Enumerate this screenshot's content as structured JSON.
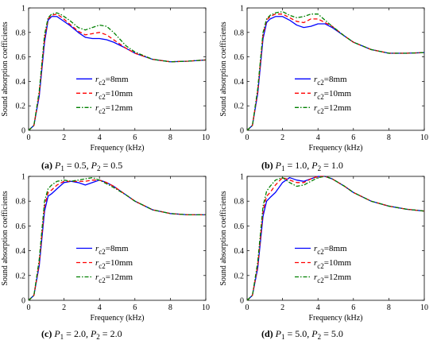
{
  "chart_data": [
    {
      "type": "line",
      "caption": {
        "letter": "(a)",
        "p1_sym": "P",
        "p1_sub": "1",
        "p1_val": " = 0.5, ",
        "p2_sym": "P",
        "p2_sub": "2",
        "p2_val": " = 0.5"
      },
      "xlabel": "Frequency (kHz)",
      "ylabel": "Sound absorption coefficients",
      "xlim": [
        0,
        10
      ],
      "ylim": [
        0,
        1
      ],
      "xticks": [
        "0",
        "2",
        "4",
        "6",
        "8",
        "10"
      ],
      "yticks": [
        "0",
        "0.2",
        "0.4",
        "0.6",
        "0.8",
        "1"
      ],
      "legend_position": "center-left",
      "series": [
        {
          "name": "r_c2=8mm",
          "sym": "r",
          "sub": "c2",
          "suffix": "=8mm",
          "color": "#0000ff",
          "dash": "solid",
          "x": [
            0,
            0.3,
            0.6,
            0.9,
            1.1,
            1.3,
            1.6,
            1.9,
            2.3,
            2.8,
            3.2,
            3.6,
            4.0,
            4.4,
            4.8,
            5.5,
            6.0,
            7.0,
            8.0,
            9.0,
            10.0
          ],
          "y": [
            0,
            0.04,
            0.28,
            0.72,
            0.9,
            0.93,
            0.93,
            0.9,
            0.86,
            0.8,
            0.76,
            0.75,
            0.75,
            0.74,
            0.72,
            0.67,
            0.63,
            0.58,
            0.56,
            0.565,
            0.575
          ]
        },
        {
          "name": "r_c2=10mm",
          "sym": "r",
          "sub": "c2",
          "suffix": "=10mm",
          "color": "#ff0000",
          "dash": "dashed",
          "x": [
            0,
            0.3,
            0.6,
            0.9,
            1.1,
            1.3,
            1.6,
            1.9,
            2.3,
            2.8,
            3.2,
            3.6,
            4.0,
            4.4,
            4.8,
            5.5,
            6.0,
            7.0,
            8.0,
            9.0,
            10.0
          ],
          "y": [
            0,
            0.04,
            0.3,
            0.75,
            0.91,
            0.94,
            0.95,
            0.92,
            0.87,
            0.81,
            0.78,
            0.79,
            0.8,
            0.78,
            0.74,
            0.67,
            0.63,
            0.58,
            0.56,
            0.565,
            0.575
          ]
        },
        {
          "name": "r_c2=12mm",
          "sym": "r",
          "sub": "c2",
          "suffix": "=12mm",
          "color": "#008000",
          "dash": "dashdot",
          "x": [
            0,
            0.3,
            0.6,
            0.9,
            1.1,
            1.3,
            1.6,
            1.9,
            2.3,
            2.8,
            3.2,
            3.6,
            4.0,
            4.4,
            4.8,
            5.5,
            6.0,
            7.0,
            8.0,
            9.0,
            10.0
          ],
          "y": [
            0,
            0.04,
            0.32,
            0.78,
            0.92,
            0.95,
            0.96,
            0.94,
            0.9,
            0.84,
            0.82,
            0.84,
            0.86,
            0.85,
            0.8,
            0.69,
            0.64,
            0.58,
            0.56,
            0.565,
            0.575
          ]
        }
      ]
    },
    {
      "type": "line",
      "caption": {
        "letter": "(b)",
        "p1_sym": "P",
        "p1_sub": "1",
        "p1_val": " = 1.0, ",
        "p2_sym": "P",
        "p2_sub": "2",
        "p2_val": " = 1.0"
      },
      "xlabel": "Frequency (kHz)",
      "ylabel": "Sound absorption coefficients",
      "xlim": [
        0,
        10
      ],
      "ylim": [
        0,
        1
      ],
      "xticks": [
        "0",
        "2",
        "4",
        "6",
        "8",
        "10"
      ],
      "yticks": [
        "0",
        "0.2",
        "0.4",
        "0.6",
        "0.8",
        "1"
      ],
      "legend_position": "center-left",
      "series": [
        {
          "name": "r_c2=8mm",
          "sym": "r",
          "sub": "c2",
          "suffix": "=8mm",
          "color": "#0000ff",
          "dash": "solid",
          "x": [
            0,
            0.3,
            0.6,
            0.9,
            1.1,
            1.3,
            1.6,
            2.0,
            2.4,
            2.8,
            3.2,
            3.6,
            4.0,
            4.4,
            4.8,
            5.5,
            6.0,
            7.0,
            8.0,
            9.0,
            10.0
          ],
          "y": [
            0,
            0.04,
            0.3,
            0.75,
            0.88,
            0.91,
            0.93,
            0.93,
            0.9,
            0.86,
            0.84,
            0.85,
            0.87,
            0.87,
            0.84,
            0.77,
            0.72,
            0.66,
            0.63,
            0.63,
            0.635
          ]
        },
        {
          "name": "r_c2=10mm",
          "sym": "r",
          "sub": "c2",
          "suffix": "=10mm",
          "color": "#ff0000",
          "dash": "dashed",
          "x": [
            0,
            0.3,
            0.6,
            0.9,
            1.1,
            1.3,
            1.6,
            2.0,
            2.4,
            2.8,
            3.2,
            3.6,
            4.0,
            4.4,
            4.8,
            5.5,
            6.0,
            7.0,
            8.0,
            9.0,
            10.0
          ],
          "y": [
            0,
            0.04,
            0.32,
            0.78,
            0.9,
            0.93,
            0.95,
            0.95,
            0.92,
            0.89,
            0.88,
            0.91,
            0.91,
            0.88,
            0.85,
            0.77,
            0.72,
            0.66,
            0.63,
            0.63,
            0.635
          ]
        },
        {
          "name": "r_c2=12mm",
          "sym": "r",
          "sub": "c2",
          "suffix": "=12mm",
          "color": "#008000",
          "dash": "dashdot",
          "x": [
            0,
            0.3,
            0.6,
            0.9,
            1.1,
            1.3,
            1.6,
            2.0,
            2.4,
            2.8,
            3.2,
            3.6,
            4.0,
            4.4,
            4.8,
            5.5,
            6.0,
            7.0,
            8.0,
            9.0,
            10.0
          ],
          "y": [
            0,
            0.04,
            0.34,
            0.8,
            0.91,
            0.94,
            0.96,
            0.97,
            0.94,
            0.92,
            0.93,
            0.95,
            0.95,
            0.9,
            0.85,
            0.77,
            0.72,
            0.66,
            0.63,
            0.63,
            0.635
          ]
        }
      ]
    },
    {
      "type": "line",
      "caption": {
        "letter": "(c)",
        "p1_sym": "P",
        "p1_sub": "1",
        "p1_val": " = 2.0, ",
        "p2_sym": "P",
        "p2_sub": "2",
        "p2_val": " = 2.0"
      },
      "xlabel": "Frequency (kHz)",
      "ylabel": "Sound absorption coefficients",
      "xlim": [
        0,
        10
      ],
      "ylim": [
        0,
        1
      ],
      "xticks": [
        "0",
        "2",
        "4",
        "6",
        "8",
        "10"
      ],
      "yticks": [
        "0",
        "0.2",
        "0.4",
        "0.6",
        "0.8",
        "1"
      ],
      "legend_position": "center-left",
      "series": [
        {
          "name": "r_c2=8mm",
          "sym": "r",
          "sub": "c2",
          "suffix": "=8mm",
          "color": "#0000ff",
          "dash": "solid",
          "x": [
            0,
            0.3,
            0.6,
            0.9,
            1.1,
            1.3,
            1.6,
            2.0,
            2.4,
            2.8,
            3.2,
            3.6,
            4.0,
            4.4,
            4.8,
            5.5,
            6.0,
            7.0,
            8.0,
            9.0,
            10.0
          ],
          "y": [
            0,
            0.04,
            0.28,
            0.72,
            0.84,
            0.86,
            0.9,
            0.95,
            0.96,
            0.95,
            0.93,
            0.95,
            0.97,
            0.95,
            0.92,
            0.85,
            0.8,
            0.73,
            0.7,
            0.69,
            0.69
          ]
        },
        {
          "name": "r_c2=10mm",
          "sym": "r",
          "sub": "c2",
          "suffix": "=10mm",
          "color": "#ff0000",
          "dash": "dashed",
          "x": [
            0,
            0.3,
            0.6,
            0.9,
            1.1,
            1.3,
            1.6,
            2.0,
            2.4,
            2.8,
            3.2,
            3.6,
            4.0,
            4.4,
            4.8,
            5.5,
            6.0,
            7.0,
            8.0,
            9.0,
            10.0
          ],
          "y": [
            0,
            0.04,
            0.3,
            0.76,
            0.87,
            0.89,
            0.93,
            0.96,
            0.96,
            0.96,
            0.96,
            0.97,
            0.97,
            0.95,
            0.92,
            0.85,
            0.8,
            0.73,
            0.7,
            0.69,
            0.69
          ]
        },
        {
          "name": "r_c2=12mm",
          "sym": "r",
          "sub": "c2",
          "suffix": "=12mm",
          "color": "#008000",
          "dash": "dashdot",
          "x": [
            0,
            0.3,
            0.6,
            0.9,
            1.1,
            1.3,
            1.6,
            2.0,
            2.4,
            2.8,
            3.2,
            3.6,
            4.0,
            4.4,
            4.8,
            5.5,
            6.0,
            7.0,
            8.0,
            9.0,
            10.0
          ],
          "y": [
            0,
            0.04,
            0.33,
            0.8,
            0.9,
            0.93,
            0.96,
            0.97,
            0.96,
            0.97,
            0.98,
            0.99,
            0.97,
            0.94,
            0.91,
            0.85,
            0.8,
            0.73,
            0.7,
            0.69,
            0.69
          ]
        }
      ]
    },
    {
      "type": "line",
      "caption": {
        "letter": "(d)",
        "p1_sym": "P",
        "p1_sub": "1",
        "p1_val": " = 5.0, ",
        "p2_sym": "P",
        "p2_sub": "2",
        "p2_val": " = 5.0"
      },
      "xlabel": "Frequency (kHz)",
      "ylabel": "Sound absorption coefficients",
      "xlim": [
        0,
        10
      ],
      "ylim": [
        0,
        1
      ],
      "xticks": [
        "0",
        "2",
        "4",
        "6",
        "8",
        "10"
      ],
      "yticks": [
        "0",
        "0.2",
        "0.4",
        "0.6",
        "0.8",
        "1"
      ],
      "legend_position": "center-left",
      "series": [
        {
          "name": "r_c2=8mm",
          "sym": "r",
          "sub": "c2",
          "suffix": "=8mm",
          "color": "#0000ff",
          "dash": "solid",
          "x": [
            0,
            0.3,
            0.6,
            0.9,
            1.1,
            1.3,
            1.6,
            2.0,
            2.4,
            2.8,
            3.2,
            3.6,
            4.0,
            4.4,
            4.8,
            5.5,
            6.0,
            7.0,
            8.0,
            9.0,
            10.0
          ],
          "y": [
            0,
            0.04,
            0.26,
            0.68,
            0.8,
            0.83,
            0.87,
            0.95,
            0.99,
            0.97,
            0.96,
            0.98,
            1.0,
            1.0,
            0.98,
            0.92,
            0.87,
            0.8,
            0.76,
            0.735,
            0.72
          ]
        },
        {
          "name": "r_c2=10mm",
          "sym": "r",
          "sub": "c2",
          "suffix": "=10mm",
          "color": "#ff0000",
          "dash": "dashed",
          "x": [
            0,
            0.3,
            0.6,
            0.9,
            1.1,
            1.3,
            1.6,
            2.0,
            2.4,
            2.8,
            3.2,
            3.6,
            4.0,
            4.4,
            4.8,
            5.5,
            6.0,
            7.0,
            8.0,
            9.0,
            10.0
          ],
          "y": [
            0,
            0.04,
            0.28,
            0.72,
            0.84,
            0.87,
            0.93,
            0.99,
            0.97,
            0.95,
            0.95,
            0.98,
            1.0,
            1.0,
            0.98,
            0.92,
            0.87,
            0.8,
            0.76,
            0.735,
            0.72
          ]
        },
        {
          "name": "r_c2=12mm",
          "sym": "r",
          "sub": "c2",
          "suffix": "=12mm",
          "color": "#008000",
          "dash": "dashdot",
          "x": [
            0,
            0.3,
            0.6,
            0.9,
            1.1,
            1.3,
            1.6,
            2.0,
            2.4,
            2.8,
            3.2,
            3.6,
            4.0,
            4.4,
            4.8,
            5.5,
            6.0,
            7.0,
            8.0,
            9.0,
            10.0
          ],
          "y": [
            0,
            0.04,
            0.31,
            0.76,
            0.88,
            0.92,
            0.97,
            0.99,
            0.95,
            0.92,
            0.93,
            0.96,
            0.99,
            1.0,
            0.98,
            0.92,
            0.87,
            0.8,
            0.76,
            0.735,
            0.72
          ]
        }
      ]
    }
  ]
}
